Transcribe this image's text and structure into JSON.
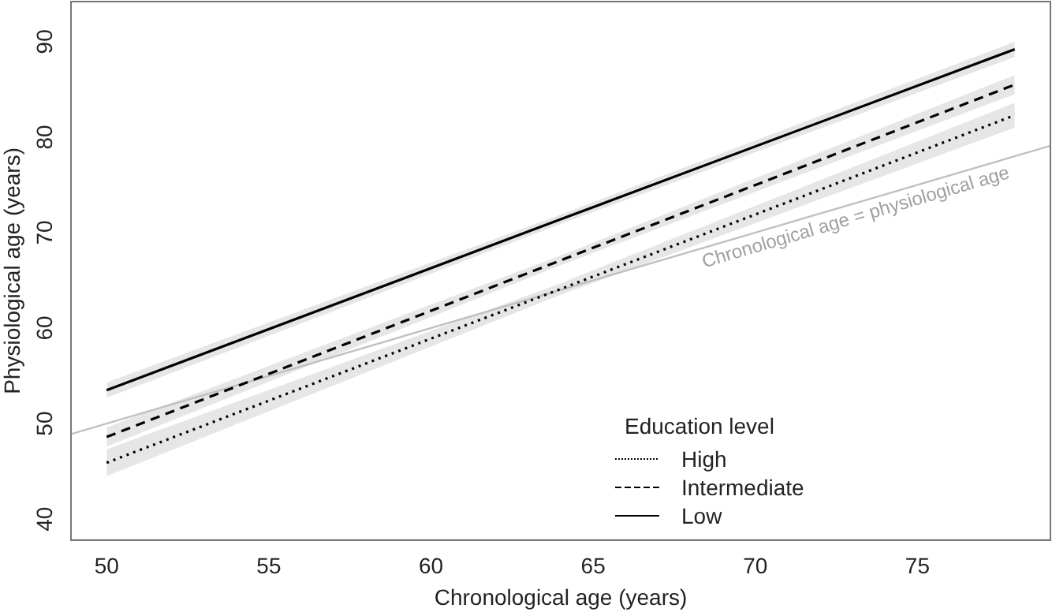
{
  "chart_data": {
    "type": "line",
    "xlabel": "Chronological age (years)",
    "ylabel": "Physiological age (years)",
    "legend_title": "Education level",
    "xlim": [
      48.9,
      79.1
    ],
    "ylim": [
      37.8,
      94.2
    ],
    "xticks": [
      50,
      55,
      60,
      65,
      70,
      75
    ],
    "yticks": [
      40,
      50,
      60,
      70,
      80,
      90
    ],
    "grid": false,
    "legend": "bottom right",
    "marker": "none",
    "series": [
      {
        "name": "High",
        "color": "#000000",
        "line_style": "dotted",
        "x": [
          50,
          64,
          78
        ],
        "values": [
          45.9,
          64.1,
          82.3
        ],
        "lower": [
          44.5,
          63.5,
          81.0
        ],
        "upper": [
          47.3,
          64.7,
          83.6
        ]
      },
      {
        "name": "Intermediate",
        "color": "#000000",
        "line_style": "dashed",
        "x": [
          50,
          64,
          78
        ],
        "values": [
          48.6,
          67.1,
          85.5
        ],
        "lower": [
          47.6,
          66.6,
          84.5
        ],
        "upper": [
          49.6,
          67.6,
          86.5
        ]
      },
      {
        "name": "Low",
        "color": "#000000",
        "line_style": "solid",
        "x": [
          50,
          64,
          78
        ],
        "values": [
          53.5,
          71.4,
          89.2
        ],
        "lower": [
          52.7,
          70.9,
          88.4
        ],
        "upper": [
          54.3,
          71.9,
          90.0
        ]
      },
      {
        "color": "#c0c0c0",
        "line_style": "solid",
        "x": [
          48.9,
          79.1
        ],
        "values": [
          48.9,
          79.1
        ]
      }
    ],
    "annotations": [
      "Chronological age = physiological age"
    ]
  }
}
